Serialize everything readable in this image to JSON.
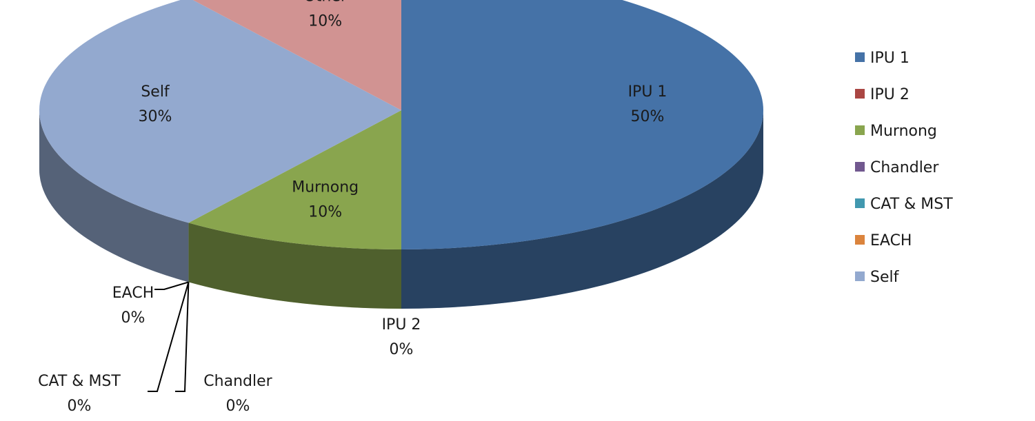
{
  "chart_data": {
    "type": "pie",
    "three_d": true,
    "categories": [
      "IPU 1",
      "IPU 2",
      "Murnong",
      "Chandler",
      "CAT & MST",
      "EACH",
      "Self",
      "Other"
    ],
    "values": [
      50,
      0,
      10,
      0,
      0,
      0,
      30,
      10
    ],
    "value_labels": [
      "50%",
      "0%",
      "10%",
      "0%",
      "0%",
      "0%",
      "30%",
      "10%"
    ],
    "colors": [
      "#4572a7",
      "#aa4643",
      "#89a54e",
      "#71588f",
      "#4198af",
      "#db843d",
      "#93a9cf",
      "#d19392"
    ],
    "legend": "right"
  }
}
